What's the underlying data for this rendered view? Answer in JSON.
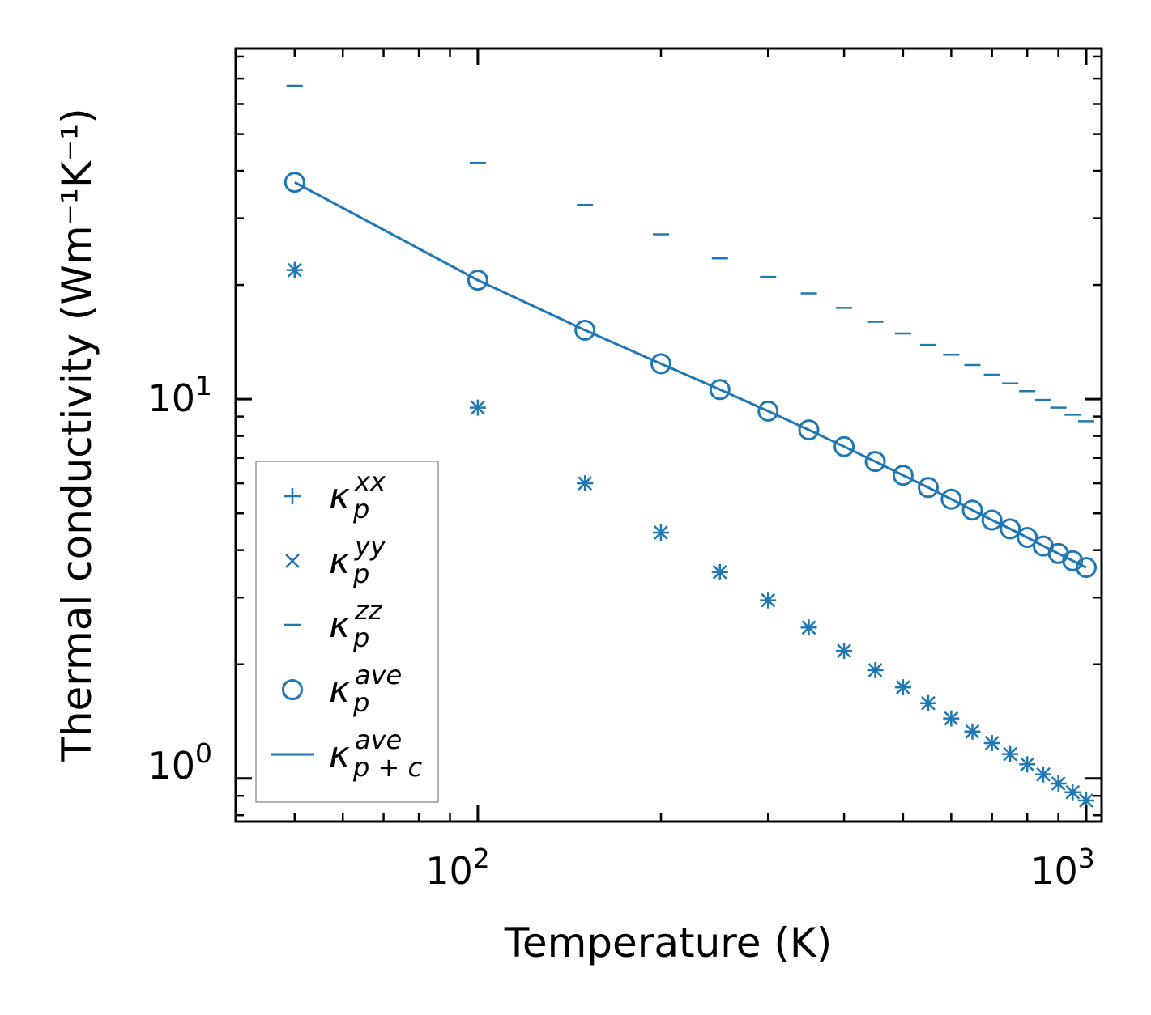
{
  "chart_data": {
    "type": "scatter",
    "xscale": "log",
    "yscale": "log",
    "xlabel": "Temperature (K)",
    "ylabel": "Thermal conductivity (Wm⁻¹K⁻¹)",
    "xlim": [
      40,
      1060
    ],
    "ylim": [
      0.77,
      84
    ],
    "xticks": [
      {
        "base": "10",
        "exp": "2"
      },
      {
        "base": "10",
        "exp": "3"
      }
    ],
    "yticks": [
      {
        "base": "10",
        "exp": "0"
      },
      {
        "base": "10",
        "exp": "1"
      }
    ],
    "x": [
      50,
      100,
      150,
      200,
      250,
      300,
      350,
      400,
      450,
      500,
      550,
      600,
      650,
      700,
      750,
      800,
      850,
      900,
      950,
      1000
    ],
    "series": [
      {
        "name": "kappa_p^xx",
        "marker": "plus",
        "legend": {
          "base": "κ",
          "sub": "p",
          "sup": "xx"
        },
        "values": [
          21.9,
          9.5,
          6.0,
          4.45,
          3.5,
          2.95,
          2.5,
          2.17,
          1.93,
          1.74,
          1.58,
          1.44,
          1.33,
          1.24,
          1.16,
          1.09,
          1.025,
          0.97,
          0.92,
          0.875
        ]
      },
      {
        "name": "kappa_p^yy",
        "marker": "x",
        "legend": {
          "base": "κ",
          "sub": "p",
          "sup": "yy"
        },
        "values": [
          21.9,
          9.5,
          6.0,
          4.45,
          3.5,
          2.95,
          2.5,
          2.17,
          1.93,
          1.74,
          1.58,
          1.44,
          1.33,
          1.24,
          1.16,
          1.09,
          1.025,
          0.97,
          0.92,
          0.875
        ]
      },
      {
        "name": "kappa_p^zz",
        "marker": "hline",
        "legend": {
          "base": "κ",
          "sub": "p",
          "sup": "zz"
        },
        "values": [
          67,
          42,
          32.5,
          27.2,
          23.5,
          21.0,
          19.0,
          17.4,
          16.0,
          14.9,
          13.9,
          13.1,
          12.3,
          11.6,
          11.0,
          10.5,
          9.95,
          9.5,
          9.1,
          8.75
        ]
      },
      {
        "name": "kappa_p^ave",
        "marker": "circle",
        "legend": {
          "base": "κ",
          "sub": "p",
          "sup": "ave"
        },
        "values": [
          37.3,
          20.6,
          15.2,
          12.4,
          10.6,
          9.3,
          8.3,
          7.5,
          6.85,
          6.3,
          5.85,
          5.45,
          5.1,
          4.8,
          4.55,
          4.32,
          4.1,
          3.92,
          3.75,
          3.6
        ]
      },
      {
        "name": "kappa_p+c^ave",
        "marker": "line",
        "legend": {
          "base": "κ",
          "sub": "p + c",
          "sup": "ave"
        },
        "values": [
          37.3,
          20.6,
          15.2,
          12.4,
          10.6,
          9.3,
          8.3,
          7.5,
          6.85,
          6.3,
          5.85,
          5.45,
          5.1,
          4.8,
          4.55,
          4.32,
          4.1,
          3.92,
          3.75,
          3.6
        ]
      }
    ],
    "legend_position": "lower-left",
    "color": "#1f77b4"
  }
}
